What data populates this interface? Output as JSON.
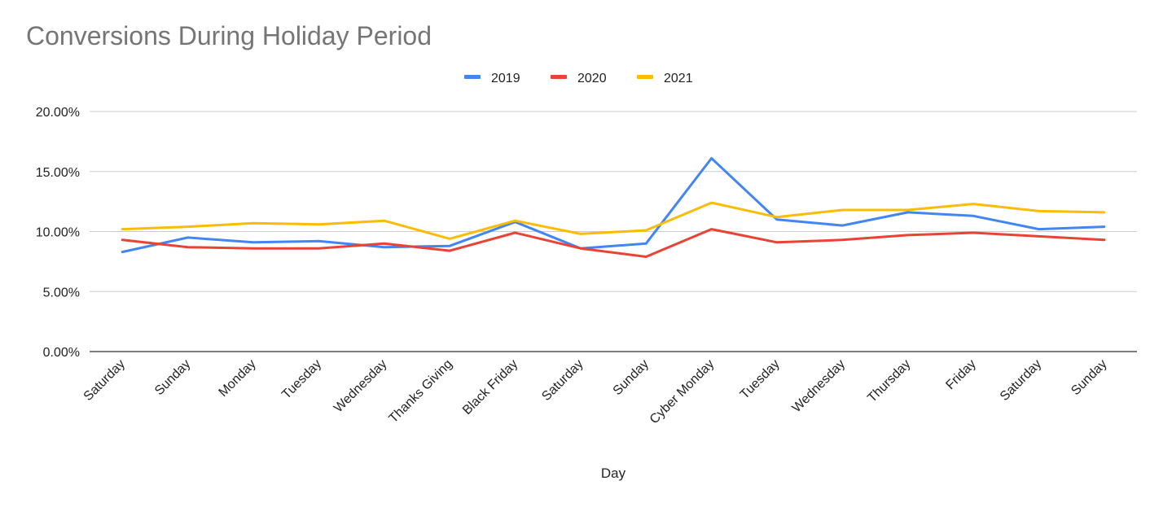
{
  "chart_data": {
    "type": "line",
    "title": "Conversions During Holiday Period",
    "xlabel": "Day",
    "ylabel": "",
    "ylim": [
      0,
      0.2
    ],
    "yticks": [
      0,
      0.05,
      0.1,
      0.15,
      0.2
    ],
    "ytick_labels": [
      "0.00%",
      "5.00%",
      "10.00%",
      "15.00%",
      "20.00%"
    ],
    "grid": true,
    "legend_position": "top-center",
    "categories": [
      "Saturday",
      "Sunday",
      "Monday",
      "Tuesday",
      "Wednesday",
      "Thanks Giving",
      "Black Friday",
      "Saturday",
      "Sunday",
      "Cyber Monday",
      "Tuesday",
      "Wednesday",
      "Thursday",
      "Friday",
      "Saturday",
      "Sunday"
    ],
    "series": [
      {
        "name": "2019",
        "color": "#4285f4",
        "values": [
          0.083,
          0.095,
          0.091,
          0.092,
          0.087,
          0.088,
          0.108,
          0.086,
          0.09,
          0.161,
          0.11,
          0.105,
          0.116,
          0.113,
          0.102,
          0.104
        ]
      },
      {
        "name": "2020",
        "color": "#ea4335",
        "values": [
          0.093,
          0.087,
          0.086,
          0.086,
          0.09,
          0.084,
          0.099,
          0.086,
          0.079,
          0.102,
          0.091,
          0.093,
          0.097,
          0.099,
          0.096,
          0.093
        ]
      },
      {
        "name": "2021",
        "color": "#fbbc04",
        "values": [
          0.102,
          0.104,
          0.107,
          0.106,
          0.109,
          0.094,
          0.109,
          0.098,
          0.101,
          0.124,
          0.112,
          0.118,
          0.118,
          0.123,
          0.117,
          0.116
        ]
      }
    ]
  }
}
